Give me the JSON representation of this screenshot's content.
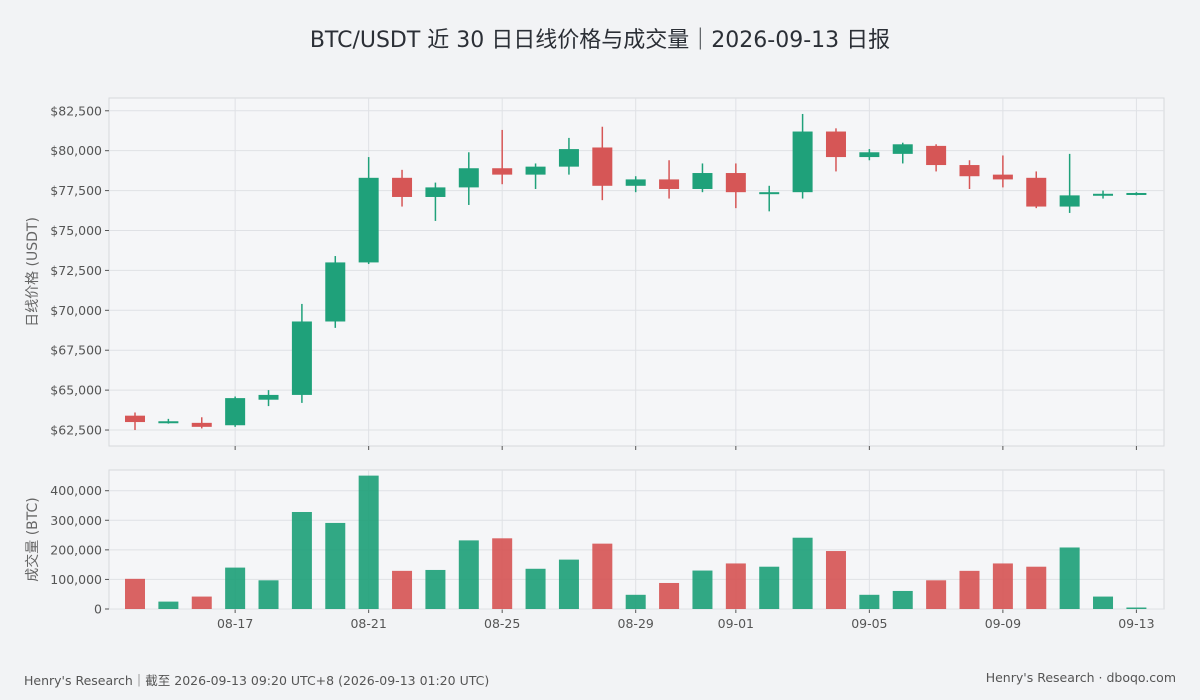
{
  "title": "BTC/USDT 近 30 日日线价格与成交量｜2026-09-13 日报",
  "footer": {
    "left": "Henry's Research｜截至 2026-09-13 09:20 UTC+8 (2026-09-13 01:20 UTC)",
    "right": "Henry's Research · dboqo.com"
  },
  "colors": {
    "up": "#1fa17a",
    "down": "#d65656",
    "panel_bg": "#f5f6f8",
    "grid": "#dfe1e5"
  },
  "chart_data": [
    {
      "type": "candlestick",
      "ylabel": "日线价格 (USDT)",
      "ylim": [
        61500,
        83300
      ],
      "yticks": [
        62500,
        65000,
        67500,
        70000,
        72500,
        75000,
        77500,
        80000,
        82500
      ],
      "grid": true,
      "x": [
        "2026-08-14",
        "2026-08-15",
        "2026-08-16",
        "2026-08-17",
        "2026-08-18",
        "2026-08-19",
        "2026-08-20",
        "2026-08-21",
        "2026-08-22",
        "2026-08-23",
        "2026-08-24",
        "2026-08-25",
        "2026-08-26",
        "2026-08-27",
        "2026-08-28",
        "2026-08-29",
        "2026-08-30",
        "2026-08-31",
        "2026-09-01",
        "2026-09-02",
        "2026-09-03",
        "2026-09-04",
        "2026-09-05",
        "2026-09-06",
        "2026-09-07",
        "2026-09-08",
        "2026-09-09",
        "2026-09-10",
        "2026-09-11",
        "2026-09-12",
        "2026-09-13"
      ],
      "ohlc": [
        [
          63400,
          63600,
          62500,
          63000
        ],
        [
          63000,
          63200,
          62900,
          63050
        ],
        [
          62950,
          63300,
          62600,
          62700
        ],
        [
          62800,
          64600,
          62700,
          64500
        ],
        [
          64400,
          65000,
          64000,
          64700
        ],
        [
          64700,
          70400,
          64200,
          69300
        ],
        [
          69300,
          73400,
          68900,
          73000
        ],
        [
          73000,
          79600,
          72900,
          78300
        ],
        [
          78300,
          78800,
          76500,
          77100
        ],
        [
          77100,
          78000,
          75600,
          77700
        ],
        [
          77700,
          79900,
          76600,
          78900
        ],
        [
          78900,
          81300,
          77900,
          78500
        ],
        [
          78500,
          79200,
          77600,
          79000
        ],
        [
          79000,
          80800,
          78500,
          80100
        ],
        [
          80200,
          81500,
          76900,
          77800
        ],
        [
          77800,
          78400,
          77400,
          78200
        ],
        [
          78200,
          79400,
          77000,
          77600
        ],
        [
          77600,
          79200,
          77400,
          78600
        ],
        [
          78600,
          79200,
          76400,
          77400
        ],
        [
          77400,
          77800,
          76200,
          77400
        ],
        [
          77400,
          82300,
          77000,
          81200
        ],
        [
          81200,
          81400,
          78700,
          79600
        ],
        [
          79600,
          80100,
          79400,
          79900
        ],
        [
          79800,
          80500,
          79200,
          80400
        ],
        [
          80300,
          80400,
          78700,
          79100
        ],
        [
          79100,
          79400,
          77600,
          78400
        ],
        [
          78500,
          79700,
          77700,
          78200
        ],
        [
          78300,
          78700,
          76400,
          76500
        ],
        [
          76500,
          79800,
          76100,
          77200
        ],
        [
          77200,
          77500,
          77000,
          77300
        ],
        [
          77300,
          77400,
          77200,
          77350
        ]
      ]
    },
    {
      "type": "bar",
      "ylabel": "成交量 (BTC)",
      "ylim": [
        0,
        470000
      ],
      "yticks": [
        0,
        100000,
        200000,
        300000,
        400000
      ],
      "grid": true,
      "x_ticks": [
        "08-17",
        "08-21",
        "08-25",
        "08-29",
        "09-01",
        "09-05",
        "09-09",
        "09-13"
      ],
      "x_tick_dates": [
        "2026-08-17",
        "2026-08-21",
        "2026-08-25",
        "2026-08-29",
        "2026-09-01",
        "2026-09-05",
        "2026-09-09",
        "2026-09-13"
      ],
      "values": [
        102000,
        25000,
        42000,
        140000,
        97000,
        328000,
        291000,
        451000,
        129000,
        132000,
        232000,
        239000,
        136000,
        167000,
        221000,
        48000,
        88000,
        130000,
        154000,
        143000,
        241000,
        196000,
        48000,
        61000,
        97000,
        129000,
        154000,
        143000,
        208000,
        42000,
        5000
      ]
    }
  ]
}
